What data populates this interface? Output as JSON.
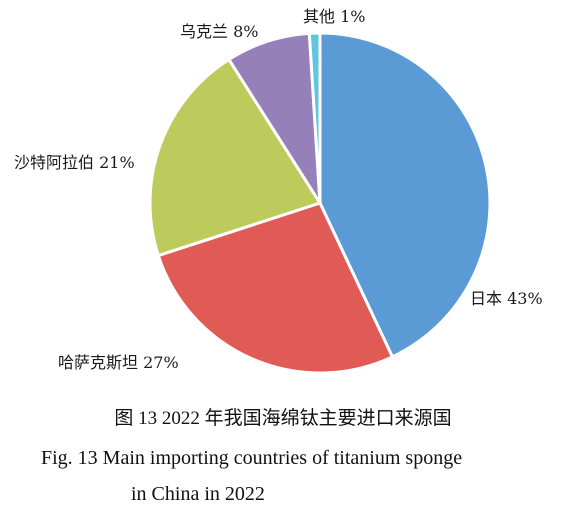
{
  "chart_data": {
    "type": "pie",
    "slices": [
      {
        "label": "日本",
        "value": 43,
        "display": "日本 43%",
        "color": "#5b9bd5"
      },
      {
        "label": "哈萨克斯坦",
        "value": 27,
        "display": "哈萨克斯坦 27%",
        "color": "#e05a56"
      },
      {
        "label": "沙特阿拉伯",
        "value": 21,
        "display": "沙特阿拉伯 21%",
        "color": "#bccb5c"
      },
      {
        "label": "乌克兰",
        "value": 8,
        "display": "乌克兰 8%",
        "color": "#9680b9"
      },
      {
        "label": "其他",
        "value": 1,
        "display": "其他 1%",
        "color": "#60c5dd"
      }
    ],
    "start_angle_deg": 0,
    "direction": "clockwise"
  },
  "caption": {
    "cn": "图 13 2022 年我国海绵钛主要进口来源国",
    "en_line1": "Fig. 13 Main importing countries of titanium sponge",
    "en_line2": "in China in 2022"
  }
}
